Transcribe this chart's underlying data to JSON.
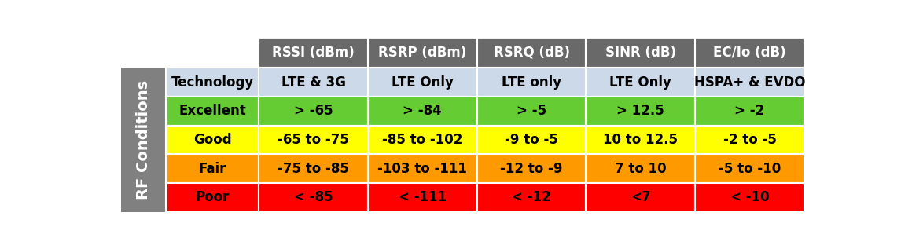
{
  "header_row": [
    "RSSI (dBm)",
    "RSRP (dBm)",
    "RSRQ (dB)",
    "SINR (dB)",
    "EC/Io (dB)"
  ],
  "rows": [
    [
      "Technology",
      "LTE & 3G",
      "LTE Only",
      "LTE only",
      "LTE Only",
      "HSPA+ & EVDO"
    ],
    [
      "Excellent",
      "> -65",
      "> -84",
      "> -5",
      "> 12.5",
      "> -2"
    ],
    [
      "Good",
      "-65 to -75",
      "-85 to -102",
      "-9 to -5",
      "10 to 12.5",
      "-2 to -5"
    ],
    [
      "Fair",
      "-75 to -85",
      "-103 to -111",
      "-12 to -9",
      "7 to 10",
      "-5 to -10"
    ],
    [
      "Poor",
      "< -85",
      "< -111",
      "< -12",
      "<7",
      "< -10"
    ]
  ],
  "row_colors": [
    "#ccd9e8",
    "#66cc33",
    "#ffff00",
    "#ff9900",
    "#ff0000"
  ],
  "header_bg": "#696969",
  "header_text_color": "#ffffff",
  "side_label_bg": "#808080",
  "side_label_text": "#ffffff",
  "side_label": "RF Conditions",
  "figsize": [
    11.46,
    3.08
  ],
  "dpi": 100,
  "text_color_dark": "#000000",
  "header_fontsize": 12,
  "cell_fontsize": 12,
  "side_fontsize": 14,
  "white_bg": "#ffffff"
}
